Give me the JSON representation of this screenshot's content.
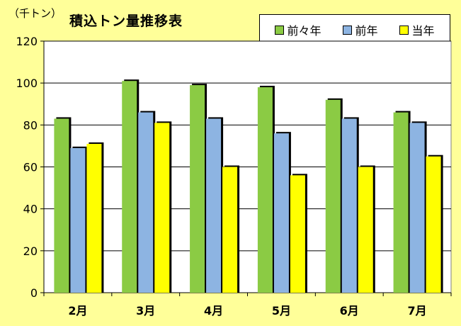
{
  "chart_data": {
    "type": "bar",
    "title": "積込トン量推移表",
    "unit": "（千トン）",
    "categories": [
      "2月",
      "3月",
      "4月",
      "5月",
      "6月",
      "7月"
    ],
    "series": [
      {
        "name": "前々年",
        "color": "#8BCB44",
        "values": [
          83,
          101,
          99,
          98,
          92,
          86
        ]
      },
      {
        "name": "前年",
        "color": "#8DB4E2",
        "values": [
          69,
          86,
          83,
          76,
          83,
          81
        ]
      },
      {
        "name": "当年",
        "color": "#FFFF00",
        "values": [
          71,
          81,
          60,
          56,
          60,
          65
        ]
      }
    ],
    "ylim": [
      0,
      120
    ],
    "yticks": [
      0,
      20,
      40,
      60,
      80,
      100,
      120
    ],
    "grid": true,
    "legend_position": "top-right"
  }
}
